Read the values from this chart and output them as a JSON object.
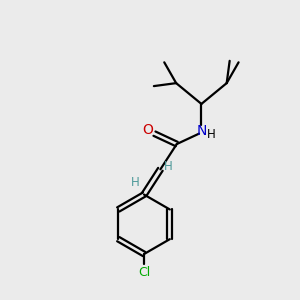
{
  "background_color": "#ebebeb",
  "bond_color": "#000000",
  "N_color": "#0000cc",
  "O_color": "#cc0000",
  "Cl_color": "#00aa00",
  "H_vinyl_color": "#4d9999",
  "line_width": 1.6,
  "fig_size": [
    3.0,
    3.0
  ],
  "dpi": 100,
  "xlim": [
    0,
    10
  ],
  "ylim": [
    0,
    10
  ]
}
